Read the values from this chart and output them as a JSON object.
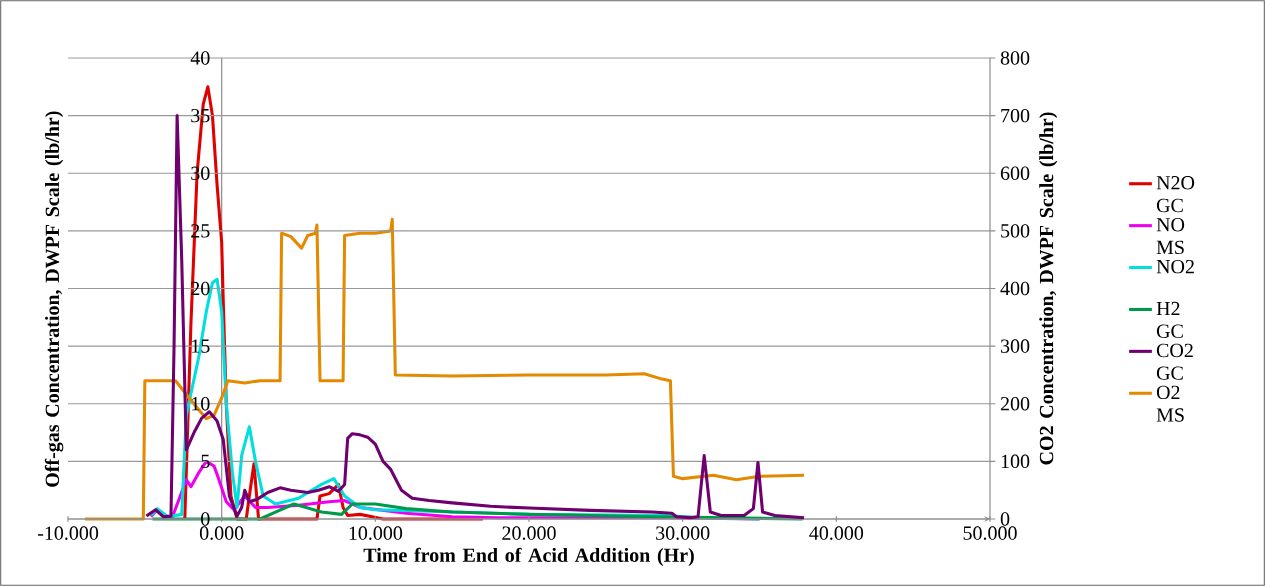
{
  "chart_data": {
    "type": "line",
    "xlabel": "Time from End of Acid Addition (Hr)",
    "ylabel": "Off-gas Concentration, DWPF Scale (lb/hr)",
    "y2label": "CO2 Concentration, DWPF Scale (lb/hr)",
    "xlim": [
      -10,
      50
    ],
    "xticks": [
      {
        "value": -10,
        "label": "-10.000"
      },
      {
        "value": 0,
        "label": "0.000"
      },
      {
        "value": 10,
        "label": "10.000"
      },
      {
        "value": 20,
        "label": "20.000"
      },
      {
        "value": 30,
        "label": "30.000"
      },
      {
        "value": 40,
        "label": "40.000"
      },
      {
        "value": 50,
        "label": "50.000"
      }
    ],
    "ylim": [
      0,
      40
    ],
    "yticks": [
      0,
      5,
      10,
      15,
      20,
      25,
      30,
      35,
      40
    ],
    "y2lim": [
      0,
      800
    ],
    "y2ticks": [
      0,
      100,
      200,
      300,
      400,
      500,
      600,
      700,
      800
    ],
    "grid": "y",
    "legend": "right",
    "series": [
      {
        "name": "N2O GC",
        "color": "#e00000",
        "x": [
          -2.4,
          -2.0,
          -1.6,
          -1.2,
          -0.9,
          -0.6,
          -0.3,
          0.0,
          0.1,
          0.3,
          0.6,
          1.0,
          1.6,
          1.8,
          2.1,
          2.4,
          3,
          6.2,
          6.4,
          7.0,
          7.6,
          7.9,
          8.2,
          9.0,
          9.8,
          10.5,
          17
        ],
        "values": [
          0,
          17,
          30,
          36,
          37.5,
          35,
          29,
          24,
          19,
          10,
          2,
          0,
          0,
          2,
          4.8,
          0,
          0,
          0,
          2,
          2.2,
          3,
          1,
          0.3,
          0.4,
          0.2,
          0,
          0
        ]
      },
      {
        "name": "NO MS",
        "color": "#ee00ee",
        "x": [
          -4.6,
          -4.2,
          -3.8,
          -3.2,
          -2.3,
          -2.0,
          -1.5,
          -1.0,
          -0.5,
          -0.2,
          0.3,
          0.8,
          1.5,
          2.2,
          3,
          5,
          7,
          8,
          9,
          12,
          15,
          18,
          29,
          35
        ],
        "values": [
          0.2,
          0.8,
          0.2,
          0.2,
          3.4,
          2.8,
          4,
          5,
          4.6,
          3.5,
          1.5,
          0.8,
          2,
          1,
          1,
          1.2,
          1.5,
          1.6,
          1,
          0.5,
          0.2,
          0.1,
          0.1,
          0
        ]
      },
      {
        "name": "NO2",
        "color": "#00dede",
        "x": [
          -4.6,
          -4.2,
          -3.5,
          -2.6,
          -2.3,
          -1.5,
          -1.0,
          -0.6,
          -0.3,
          0.0,
          0.3,
          0.7,
          1.0,
          1.3,
          1.8,
          2.2,
          2.7,
          3.5,
          5,
          6.5,
          7.3,
          8,
          9,
          10,
          13,
          20,
          29,
          31,
          35
        ],
        "values": [
          0.3,
          0.9,
          0.2,
          0.4,
          9,
          14,
          18,
          20.5,
          20.8,
          18,
          10,
          4,
          1,
          5.5,
          8,
          5,
          2,
          1.3,
          1.8,
          3,
          3.5,
          2,
          1,
          0.8,
          0.7,
          0.4,
          0.3,
          0.1,
          0
        ]
      },
      {
        "name": "H2 GC",
        "color": "#00994c",
        "x": [
          -4.5,
          2.5,
          3.5,
          4.7,
          5.5,
          6.5,
          7.8,
          8.5,
          10,
          12,
          15,
          20,
          28,
          33,
          37.8
        ],
        "values": [
          0,
          0,
          0.6,
          1.3,
          1.0,
          0.6,
          0.4,
          1.3,
          1.3,
          0.9,
          0.6,
          0.4,
          0.2,
          0.1,
          0
        ]
      },
      {
        "name": "CO2 GC",
        "color": "#6e0070",
        "axis": "y2",
        "x": [
          -4.9,
          -4.3,
          -3.8,
          -3.3,
          -3.1,
          -2.9,
          -2.6,
          -2.3,
          -1.8,
          -1.3,
          -0.8,
          -0.3,
          0.1,
          0.5,
          1.0,
          1.3,
          1.5,
          1.8,
          2.3,
          3.0,
          3.8,
          4.5,
          5.6,
          6.3,
          7.0,
          7.6,
          8.0,
          8.2,
          8.5,
          9.0,
          9.5,
          10.0,
          10.5,
          11.0,
          11.7,
          12.4,
          13.5,
          15,
          17.5,
          20,
          24,
          28,
          29.3,
          29.6,
          30.5,
          31.0,
          31.4,
          31.8,
          32.5,
          34.0,
          34.6,
          34.9,
          35.2,
          36,
          37.9
        ],
        "values": [
          5,
          16,
          4,
          5,
          300,
          700,
          450,
          120,
          150,
          175,
          186,
          170,
          138,
          40,
          5,
          20,
          50,
          30,
          34,
          46,
          54,
          50,
          46,
          50,
          56,
          48,
          60,
          140,
          148,
          146,
          142,
          130,
          100,
          86,
          50,
          36,
          32,
          28,
          22,
          19,
          15,
          12,
          10,
          4,
          2,
          4,
          110,
          12,
          6,
          6,
          18,
          98,
          12,
          6,
          2
        ]
      },
      {
        "name": "O2 MS",
        "color": "#e38a00",
        "x": [
          -8.9,
          -5.1,
          -5.0,
          -3.0,
          -2.3,
          -1.5,
          -1.0,
          -0.5,
          0.0,
          0.4,
          1.5,
          2.5,
          3.8,
          3.9,
          4.5,
          5.2,
          5.6,
          6.1,
          6.2,
          6.4,
          7.0,
          7.9,
          8.0,
          9.0,
          10.0,
          11.0,
          11.1,
          11.3,
          15,
          20,
          25,
          27.5,
          28.5,
          29.2,
          29.4,
          30,
          32,
          33.5,
          35,
          37.9
        ],
        "values": [
          0,
          0,
          12,
          12,
          10.8,
          9.5,
          8.7,
          9.0,
          10.5,
          12,
          11.8,
          12,
          12,
          24.8,
          24.5,
          23.5,
          24.6,
          24.8,
          25.5,
          12,
          12,
          12,
          24.6,
          24.8,
          24.8,
          25,
          26,
          12.5,
          12.4,
          12.5,
          12.5,
          12.6,
          12.2,
          12.0,
          3.7,
          3.5,
          3.8,
          3.4,
          3.7,
          3.8
        ]
      }
    ]
  }
}
